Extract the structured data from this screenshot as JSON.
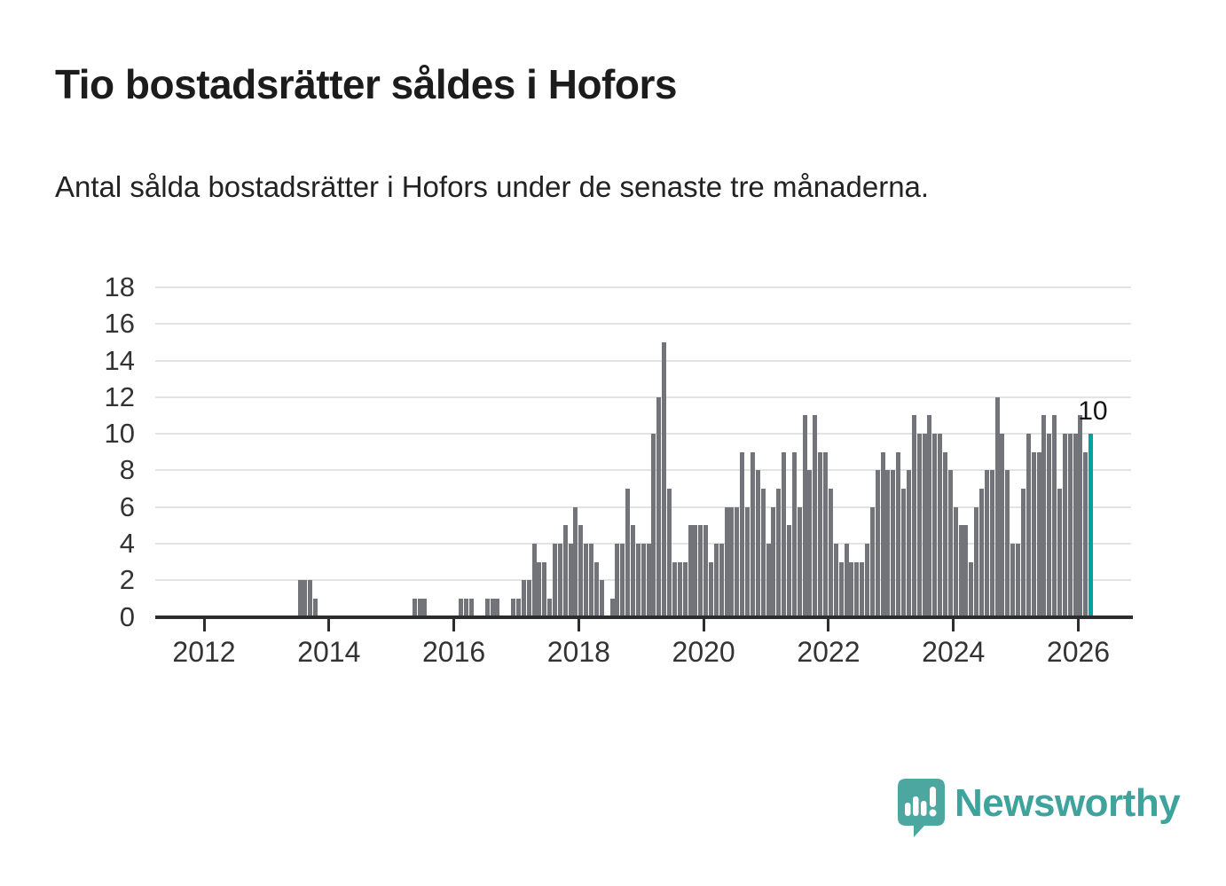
{
  "header": {
    "title": "Tio bostadsrätter såldes i Hofors",
    "subtitle": "Antal sålda bostadsrätter i Hofors under de senaste tre månaderna."
  },
  "annotation": {
    "last_value_label": "10"
  },
  "branding": {
    "logo_text": "Newsworthy"
  },
  "colors": {
    "bar": "#73737a",
    "highlight": "#00a39d",
    "gridline": "#e3e3e3",
    "axis": "#2d2d2d",
    "tick_label": "#333333",
    "title": "#1c1c1c",
    "logo": "#4ba7a0",
    "logo_text": "#3ea39c",
    "annotation": "#141414"
  },
  "chart_data": {
    "type": "bar",
    "title": "Tio bostadsrätter såldes i Hofors",
    "subtitle": "Antal sålda bostadsrätter i Hofors under de senaste tre månaderna.",
    "x_start": "2012-01",
    "x_end": "2026-03",
    "x_tick_labels": [
      "2012",
      "2014",
      "2016",
      "2018",
      "2020",
      "2022",
      "2024",
      "2026"
    ],
    "y_ticks": [
      0,
      2,
      4,
      6,
      8,
      10,
      12,
      14,
      16,
      18
    ],
    "ylim": [
      0,
      18
    ],
    "grid": "horizontal",
    "legend": "none",
    "highlight_last_bar": true,
    "last_value_label": "10",
    "values_monthly_from_2012_01": [
      0,
      0,
      0,
      0,
      0,
      0,
      0,
      0,
      0,
      0,
      0,
      0,
      0,
      0,
      0,
      0,
      0,
      0,
      2,
      2,
      2,
      1,
      0,
      0,
      0,
      0,
      0,
      0,
      0,
      0,
      0,
      0,
      0,
      0,
      0,
      0,
      0,
      0,
      0,
      0,
      1,
      1,
      1,
      0,
      0,
      0,
      0,
      0,
      0,
      1,
      1,
      1,
      0,
      0,
      1,
      1,
      1,
      0,
      0,
      1,
      1,
      2,
      2,
      4,
      3,
      3,
      1,
      4,
      4,
      5,
      4,
      6,
      5,
      4,
      4,
      3,
      2,
      0,
      1,
      4,
      4,
      7,
      5,
      4,
      4,
      4,
      10,
      12,
      15,
      7,
      3,
      3,
      3,
      5,
      5,
      5,
      5,
      3,
      4,
      4,
      6,
      6,
      6,
      9,
      6,
      9,
      8,
      7,
      4,
      6,
      7,
      9,
      5,
      9,
      6,
      11,
      8,
      11,
      9,
      9,
      7,
      4,
      3,
      4,
      3,
      3,
      3,
      4,
      6,
      8,
      9,
      8,
      8,
      9,
      7,
      8,
      11,
      10,
      10,
      11,
      10,
      10,
      9,
      8,
      6,
      5,
      5,
      3,
      6,
      7,
      8,
      8,
      12,
      10,
      8,
      4,
      4,
      7,
      10,
      9,
      9,
      11,
      10,
      11,
      7,
      10,
      10,
      10,
      11,
      9,
      10
    ]
  }
}
